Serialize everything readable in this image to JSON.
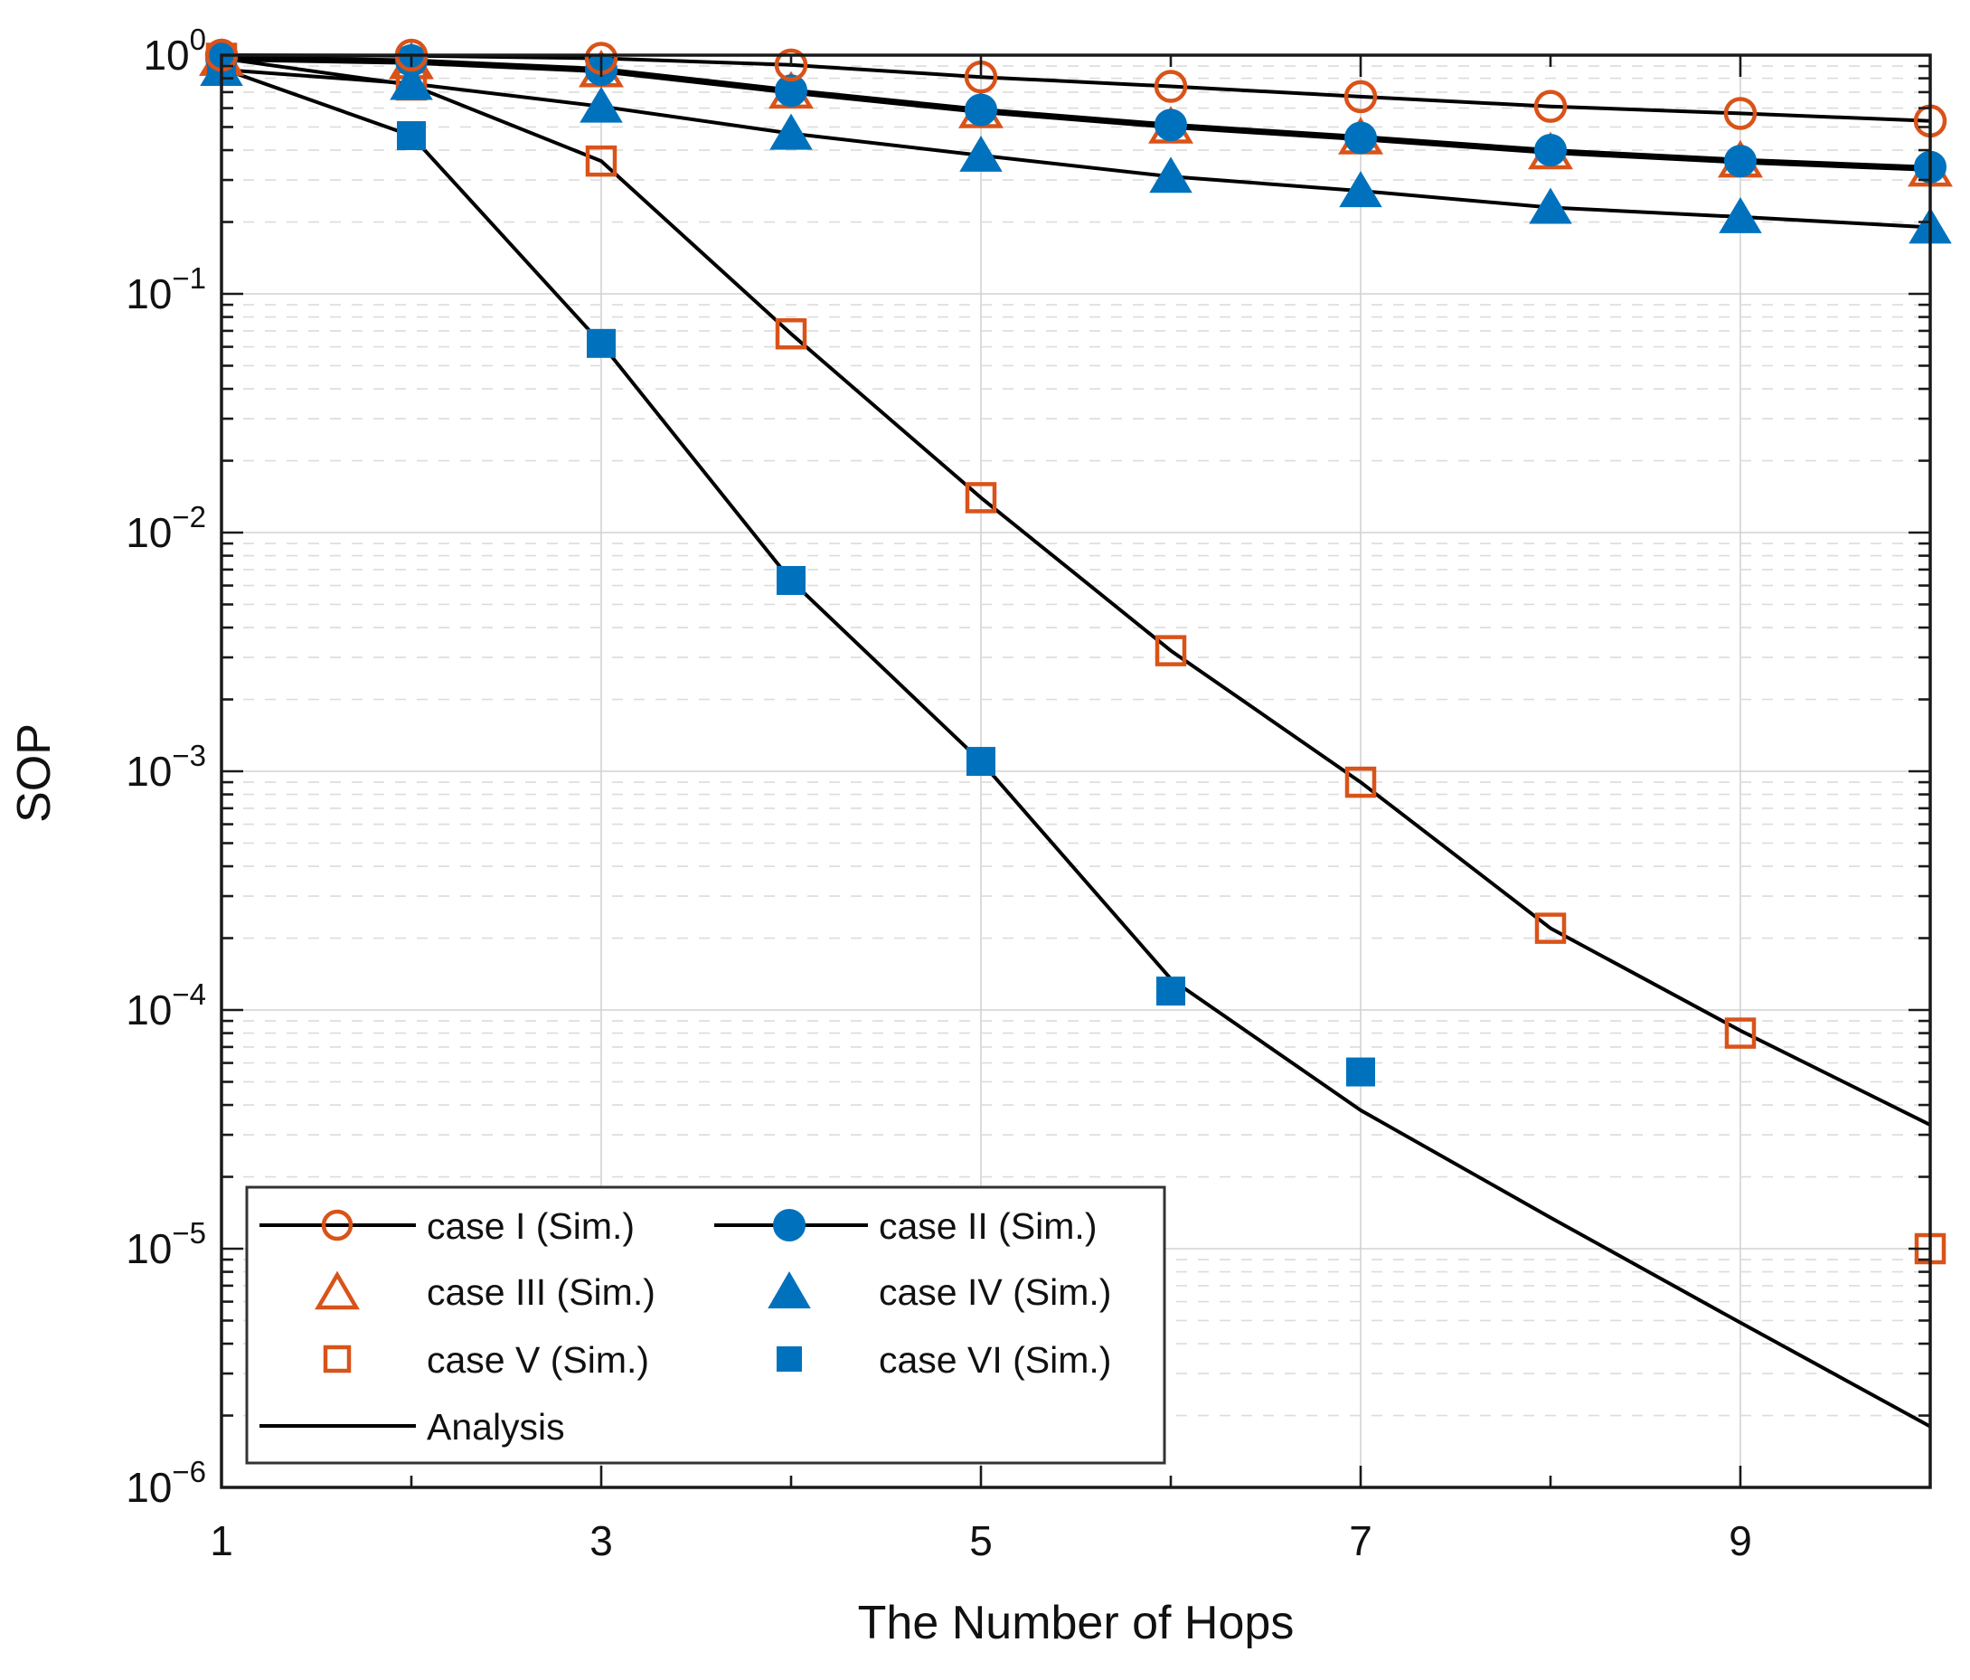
{
  "figure": {
    "kind": "matlab-style-plot",
    "background": "#ffffff"
  },
  "chart_data": {
    "type": "line",
    "title": "",
    "xlabel": "The Number of Hops",
    "ylabel": "SOP",
    "y_scale": "log",
    "x_range": [
      1,
      10
    ],
    "y_tick_exponents": [
      0,
      -1,
      -2,
      -3,
      -4,
      -5,
      -6
    ],
    "x_ticks": [
      1,
      3,
      5,
      7,
      9
    ],
    "x_minor_ticks": [
      2,
      4,
      6,
      8,
      10
    ],
    "grid": {
      "major": "solid",
      "minor": "dashed",
      "vertical_gridlines_at": [
        3,
        5,
        7,
        9
      ]
    },
    "legend_position": "inside-bottom-left",
    "colors": {
      "orange": "#D95319",
      "blue": "#0072BD",
      "analysis_line": "#000000",
      "grid_major": "#d2d2d2",
      "grid_minor": "#dcdcdc",
      "frame": "#1a1a1a"
    },
    "x": [
      1,
      2,
      3,
      4,
      5,
      6,
      7,
      8,
      9,
      10
    ],
    "series": [
      {
        "name": "case I (Sim.)",
        "marker": "open-circle",
        "color": "orange",
        "values": [
          1.0,
          1.0,
          0.97,
          0.91,
          0.81,
          0.74,
          0.67,
          0.61,
          0.57,
          0.53
        ]
      },
      {
        "name": "case II (Sim.)",
        "marker": "filled-circle",
        "color": "blue",
        "values": [
          0.97,
          0.95,
          0.87,
          0.71,
          0.59,
          0.51,
          0.45,
          0.4,
          0.36,
          0.34
        ]
      },
      {
        "name": "case III (Sim.)",
        "marker": "open-triangle",
        "color": "orange",
        "values": [
          0.96,
          0.93,
          0.86,
          0.7,
          0.58,
          0.5,
          0.45,
          0.39,
          0.36,
          0.33
        ]
      },
      {
        "name": "case IV (Sim.)",
        "marker": "filled-triangle",
        "color": "blue",
        "values": [
          0.87,
          0.76,
          0.61,
          0.47,
          0.38,
          0.31,
          0.27,
          0.23,
          0.21,
          0.19
        ]
      },
      {
        "name": "case V (Sim.)",
        "marker": "open-square",
        "color": "orange",
        "values": [
          0.97,
          0.75,
          0.36,
          0.068,
          0.014,
          0.0032,
          0.0009,
          0.00022,
          8e-05,
          1e-05
        ]
      },
      {
        "name": "case VI (Sim.)",
        "marker": "filled-square",
        "color": "blue",
        "values": [
          0.88,
          0.46,
          0.062,
          0.0063,
          0.0011,
          0.00012,
          5.5e-05,
          null,
          null,
          null
        ]
      }
    ],
    "analysis_lines": [
      {
        "for_case": "I",
        "width": 4,
        "values": [
          1.0,
          0.995,
          0.97,
          0.91,
          0.81,
          0.74,
          0.67,
          0.61,
          0.57,
          0.53
        ]
      },
      {
        "for_case": "II & III (overlapping, appears thick)",
        "width": 7,
        "values": [
          0.97,
          0.94,
          0.865,
          0.705,
          0.585,
          0.505,
          0.45,
          0.395,
          0.36,
          0.335
        ]
      },
      {
        "for_case": "IV",
        "width": 4,
        "values": [
          0.87,
          0.76,
          0.61,
          0.47,
          0.38,
          0.31,
          0.27,
          0.23,
          0.21,
          0.19
        ]
      },
      {
        "for_case": "V",
        "width": 4,
        "values": [
          0.97,
          0.75,
          0.36,
          0.068,
          0.014,
          0.0032,
          0.0009,
          0.00022,
          8.2e-05,
          3.3e-05
        ]
      },
      {
        "for_case": "VI",
        "width": 4,
        "values": [
          0.88,
          0.46,
          0.062,
          0.0063,
          0.0011,
          0.000135,
          3.8e-05,
          1.35e-05,
          4.9e-06,
          1.8e-06
        ]
      }
    ],
    "legend": {
      "entries": [
        {
          "label": "case I (Sim.)",
          "swatch": "line-open-circle"
        },
        {
          "label": "case III (Sim.)",
          "swatch": "open-triangle"
        },
        {
          "label": "case V (Sim.)",
          "swatch": "open-square"
        },
        {
          "label": "Analysis",
          "swatch": "line"
        },
        {
          "label": "case II (Sim.)",
          "swatch": "line-filled-circle"
        },
        {
          "label": "case IV (Sim.)",
          "swatch": "filled-triangle"
        },
        {
          "label": "case VI (Sim.)",
          "swatch": "filled-square"
        }
      ]
    }
  }
}
